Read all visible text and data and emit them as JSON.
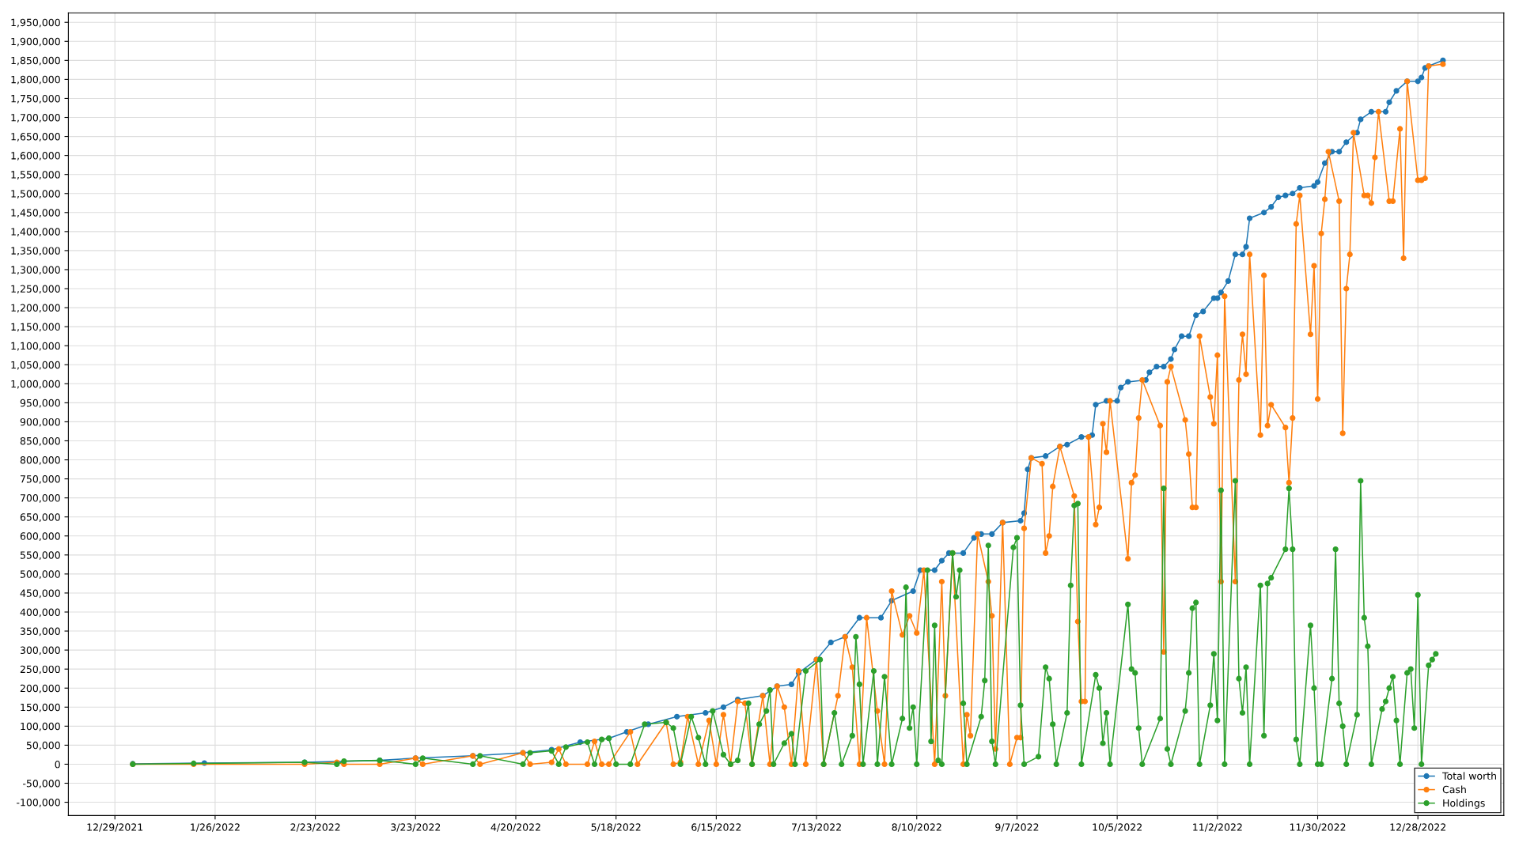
{
  "chart_data": {
    "type": "line",
    "marker": "circle",
    "line_style": "solid",
    "grid": true,
    "legend": "bottom right",
    "xlim": [
      "2021-12-16",
      "2023-01-21"
    ],
    "xticks": [
      {
        "value": "2021-12-29",
        "label": "12/29/2021"
      },
      {
        "value": "2022-01-26",
        "label": "1/26/2022"
      },
      {
        "value": "2022-02-23",
        "label": "2/23/2022"
      },
      {
        "value": "2022-03-23",
        "label": "3/23/2022"
      },
      {
        "value": "2022-04-20",
        "label": "4/20/2022"
      },
      {
        "value": "2022-05-18",
        "label": "5/18/2022"
      },
      {
        "value": "2022-06-15",
        "label": "6/15/2022"
      },
      {
        "value": "2022-07-13",
        "label": "7/13/2022"
      },
      {
        "value": "2022-08-10",
        "label": "8/10/2022"
      },
      {
        "value": "2022-09-07",
        "label": "9/7/2022"
      },
      {
        "value": "2022-10-05",
        "label": "10/5/2022"
      },
      {
        "value": "2022-11-02",
        "label": "11/2/2022"
      },
      {
        "value": "2022-11-30",
        "label": "11/30/2022"
      },
      {
        "value": "2022-12-28",
        "label": "12/28/2022"
      }
    ],
    "ylim": [
      -135000,
      1975000
    ],
    "yticks": [
      {
        "value": -100000,
        "label": "-100,000"
      },
      {
        "value": -50000,
        "label": "-50,000"
      },
      0,
      {
        "value": 50000,
        "label": "50,000"
      },
      {
        "value": 100000,
        "label": "100,000"
      },
      {
        "value": 150000,
        "label": "150,000"
      },
      {
        "value": 200000,
        "label": "200,000"
      },
      {
        "value": 250000,
        "label": "250,000"
      },
      {
        "value": 300000,
        "label": "300,000"
      },
      {
        "value": 350000,
        "label": "350,000"
      },
      {
        "value": 400000,
        "label": "400,000"
      },
      {
        "value": 450000,
        "label": "450,000"
      },
      {
        "value": 500000,
        "label": "500,000"
      },
      {
        "value": 550000,
        "label": "550,000"
      },
      {
        "value": 600000,
        "label": "600,000"
      },
      {
        "value": 650000,
        "label": "650,000"
      },
      {
        "value": 700000,
        "label": "700,000"
      },
      {
        "value": 750000,
        "label": "750,000"
      },
      {
        "value": 800000,
        "label": "800,000"
      },
      {
        "value": 850000,
        "label": "850,000"
      },
      {
        "value": 900000,
        "label": "900,000"
      },
      {
        "value": 950000,
        "label": "950,000"
      },
      {
        "value": 1000000,
        "label": "1,000,000"
      },
      {
        "value": 1050000,
        "label": "1,050,000"
      },
      {
        "value": 1100000,
        "label": "1,100,000"
      },
      {
        "value": 1150000,
        "label": "1,150,000"
      },
      {
        "value": 1200000,
        "label": "1,200,000"
      },
      {
        "value": 1250000,
        "label": "1,250,000"
      },
      {
        "value": 1300000,
        "label": "1,300,000"
      },
      {
        "value": 1350000,
        "label": "1,350,000"
      },
      {
        "value": 1400000,
        "label": "1,400,000"
      },
      {
        "value": 1450000,
        "label": "1,450,000"
      },
      {
        "value": 1500000,
        "label": "1,500,000"
      },
      {
        "value": 1550000,
        "label": "1,550,000"
      },
      {
        "value": 1600000,
        "label": "1,600,000"
      },
      {
        "value": 1650000,
        "label": "1,650,000"
      },
      {
        "value": 1700000,
        "label": "1,700,000"
      },
      {
        "value": 1750000,
        "label": "1,750,000"
      },
      {
        "value": 1800000,
        "label": "1,800,000"
      },
      {
        "value": 1850000,
        "label": "1,850,000"
      },
      {
        "value": 1900000,
        "label": "1,900,000"
      },
      {
        "value": 1950000,
        "label": "1,950,000"
      }
    ],
    "series": [
      {
        "name": "Total worth",
        "color": "#1f77b4",
        "x": [
          "2022-01-03",
          "2022-01-23",
          "2022-02-20",
          "2022-03-13",
          "2022-03-23",
          "2022-04-08",
          "2022-04-22",
          "2022-04-30",
          "2022-05-08",
          "2022-05-16",
          "2022-05-21",
          "2022-05-27",
          "2022-06-04",
          "2022-06-12",
          "2022-06-17",
          "2022-06-21",
          "2022-06-28",
          "2022-07-02",
          "2022-07-06",
          "2022-07-08",
          "2022-07-13",
          "2022-07-17",
          "2022-07-21",
          "2022-07-25",
          "2022-07-31",
          "2022-08-03",
          "2022-08-09",
          "2022-08-11",
          "2022-08-15",
          "2022-08-17",
          "2022-08-19",
          "2022-08-23",
          "2022-08-26",
          "2022-08-28",
          "2022-08-31",
          "2022-09-03",
          "2022-09-08",
          "2022-09-09",
          "2022-09-10",
          "2022-09-11",
          "2022-09-15",
          "2022-09-19",
          "2022-09-21",
          "2022-09-25",
          "2022-09-28",
          "2022-09-29",
          "2022-10-02",
          "2022-10-05",
          "2022-10-06",
          "2022-10-08",
          "2022-10-13",
          "2022-10-14",
          "2022-10-16",
          "2022-10-18",
          "2022-10-20",
          "2022-10-21",
          "2022-10-23",
          "2022-10-25",
          "2022-10-27",
          "2022-10-29",
          "2022-11-01",
          "2022-11-02",
          "2022-11-03",
          "2022-11-05",
          "2022-11-07",
          "2022-11-09",
          "2022-11-10",
          "2022-11-11",
          "2022-11-15",
          "2022-11-17",
          "2022-11-19",
          "2022-11-21",
          "2022-11-23",
          "2022-11-25",
          "2022-11-29",
          "2022-11-30",
          "2022-12-02",
          "2022-12-04",
          "2022-12-06",
          "2022-12-08",
          "2022-12-11",
          "2022-12-12",
          "2022-12-15",
          "2022-12-19",
          "2022-12-20",
          "2022-12-22",
          "2022-12-25",
          "2022-12-28",
          "2022-12-29",
          "2022-12-30",
          "2022-12-31",
          "2023-01-04"
        ],
        "values": [
          1000,
          3000,
          5000,
          10000,
          16000,
          22000,
          30000,
          38000,
          58000,
          68000,
          85000,
          105000,
          125000,
          135000,
          150000,
          170000,
          180000,
          205000,
          210000,
          240000,
          275000,
          320000,
          335000,
          385000,
          385000,
          430000,
          455000,
          510000,
          510000,
          535000,
          555000,
          555000,
          595000,
          605000,
          605000,
          635000,
          640000,
          660000,
          775000,
          805000,
          810000,
          835000,
          840000,
          860000,
          865000,
          945000,
          955000,
          955000,
          990000,
          1005000,
          1010000,
          1030000,
          1045000,
          1045000,
          1065000,
          1090000,
          1125000,
          1125000,
          1180000,
          1190000,
          1225000,
          1225000,
          1240000,
          1270000,
          1340000,
          1340000,
          1360000,
          1435000,
          1450000,
          1465000,
          1490000,
          1495000,
          1500000,
          1515000,
          1520000,
          1530000,
          1580000,
          1610000,
          1610000,
          1635000,
          1660000,
          1695000,
          1715000,
          1715000,
          1740000,
          1770000,
          1795000,
          1795000,
          1805000,
          1830000,
          1835000,
          1850000
        ]
      },
      {
        "name": "Cash",
        "color": "#ff7f0e",
        "x": [
          "2022-01-03",
          "2022-01-20",
          "2022-02-20",
          "2022-03-01",
          "2022-03-03",
          "2022-03-13",
          "2022-03-23",
          "2022-03-25",
          "2022-04-08",
          "2022-04-10",
          "2022-04-22",
          "2022-04-24",
          "2022-04-30",
          "2022-05-02",
          "2022-05-04",
          "2022-05-10",
          "2022-05-12",
          "2022-05-14",
          "2022-05-16",
          "2022-05-22",
          "2022-05-24",
          "2022-06-01",
          "2022-06-03",
          "2022-06-05",
          "2022-06-07",
          "2022-06-10",
          "2022-06-13",
          "2022-06-15",
          "2022-06-17",
          "2022-06-19",
          "2022-06-21",
          "2022-06-23",
          "2022-06-25",
          "2022-06-28",
          "2022-06-30",
          "2022-07-02",
          "2022-07-04",
          "2022-07-06",
          "2022-07-08",
          "2022-07-10",
          "2022-07-13",
          "2022-07-15",
          "2022-07-19",
          "2022-07-21",
          "2022-07-23",
          "2022-07-25",
          "2022-07-27",
          "2022-07-30",
          "2022-08-01",
          "2022-08-03",
          "2022-08-06",
          "2022-08-08",
          "2022-08-10",
          "2022-08-12",
          "2022-08-15",
          "2022-08-17",
          "2022-08-18",
          "2022-08-20",
          "2022-08-23",
          "2022-08-24",
          "2022-08-25",
          "2022-08-27",
          "2022-08-30",
          "2022-08-31",
          "2022-09-01",
          "2022-09-03",
          "2022-09-05",
          "2022-09-07",
          "2022-09-08",
          "2022-09-09",
          "2022-09-11",
          "2022-09-14",
          "2022-09-15",
          "2022-09-16",
          "2022-09-17",
          "2022-09-19",
          "2022-09-23",
          "2022-09-24",
          "2022-09-25",
          "2022-09-26",
          "2022-09-27",
          "2022-09-29",
          "2022-09-30",
          "2022-10-01",
          "2022-10-02",
          "2022-10-03",
          "2022-10-08",
          "2022-10-09",
          "2022-10-10",
          "2022-10-11",
          "2022-10-12",
          "2022-10-17",
          "2022-10-18",
          "2022-10-19",
          "2022-10-20",
          "2022-10-24",
          "2022-10-25",
          "2022-10-26",
          "2022-10-27",
          "2022-10-28",
          "2022-10-31",
          "2022-11-01",
          "2022-11-02",
          "2022-11-03",
          "2022-11-04",
          "2022-11-07",
          "2022-11-08",
          "2022-11-09",
          "2022-11-10",
          "2022-11-11",
          "2022-11-14",
          "2022-11-15",
          "2022-11-16",
          "2022-11-17",
          "2022-11-21",
          "2022-11-22",
          "2022-11-23",
          "2022-11-24",
          "2022-11-25",
          "2022-11-28",
          "2022-11-29",
          "2022-11-30",
          "2022-12-01",
          "2022-12-02",
          "2022-12-03",
          "2022-12-06",
          "2022-12-07",
          "2022-12-08",
          "2022-12-09",
          "2022-12-10",
          "2022-12-13",
          "2022-12-14",
          "2022-12-15",
          "2022-12-16",
          "2022-12-17",
          "2022-12-20",
          "2022-12-21",
          "2022-12-23",
          "2022-12-24",
          "2022-12-25",
          "2022-12-28",
          "2022-12-29",
          "2022-12-30",
          "2022-12-31",
          "2023-01-04"
        ],
        "values": [
          0,
          0,
          0,
          5000,
          0,
          0,
          16000,
          0,
          22000,
          0,
          30000,
          0,
          5000,
          40000,
          0,
          0,
          60000,
          0,
          0,
          85000,
          0,
          110000,
          0,
          5000,
          125000,
          0,
          115000,
          0,
          130000,
          0,
          165000,
          160000,
          0,
          180000,
          0,
          205000,
          150000,
          0,
          245000,
          0,
          275000,
          0,
          180000,
          335000,
          255000,
          0,
          385000,
          140000,
          0,
          455000,
          340000,
          390000,
          345000,
          510000,
          0,
          480000,
          180000,
          555000,
          0,
          130000,
          75000,
          605000,
          480000,
          390000,
          40000,
          635000,
          0,
          70000,
          70000,
          620000,
          805000,
          790000,
          555000,
          600000,
          730000,
          835000,
          705000,
          375000,
          165000,
          165000,
          860000,
          630000,
          675000,
          895000,
          820000,
          955000,
          540000,
          740000,
          760000,
          910000,
          1010000,
          890000,
          295000,
          1005000,
          1045000,
          905000,
          815000,
          675000,
          675000,
          1125000,
          965000,
          895000,
          1075000,
          480000,
          1230000,
          480000,
          1010000,
          1130000,
          1025000,
          1340000,
          865000,
          1285000,
          890000,
          945000,
          885000,
          740000,
          910000,
          1420000,
          1495000,
          1130000,
          1310000,
          960000,
          1395000,
          1485000,
          1610000,
          1480000,
          870000,
          1250000,
          1340000,
          1660000,
          1495000,
          1495000,
          1475000,
          1595000,
          1715000,
          1480000,
          1480000,
          1670000,
          1330000,
          1795000,
          1535000,
          1535000,
          1540000,
          1835000,
          1840000
        ]
      },
      {
        "name": "Holdings",
        "color": "#2ca02c",
        "x": [
          "2022-01-03",
          "2022-01-20",
          "2022-02-20",
          "2022-03-01",
          "2022-03-03",
          "2022-03-13",
          "2022-03-23",
          "2022-03-25",
          "2022-04-08",
          "2022-04-10",
          "2022-04-22",
          "2022-04-24",
          "2022-04-30",
          "2022-05-02",
          "2022-05-04",
          "2022-05-10",
          "2022-05-12",
          "2022-05-14",
          "2022-05-16",
          "2022-05-18",
          "2022-05-22",
          "2022-05-26",
          "2022-06-01",
          "2022-06-03",
          "2022-06-05",
          "2022-06-08",
          "2022-06-10",
          "2022-06-12",
          "2022-06-14",
          "2022-06-17",
          "2022-06-19",
          "2022-06-21",
          "2022-06-24",
          "2022-06-25",
          "2022-06-27",
          "2022-06-29",
          "2022-06-30",
          "2022-07-01",
          "2022-07-04",
          "2022-07-06",
          "2022-07-07",
          "2022-07-10",
          "2022-07-14",
          "2022-07-15",
          "2022-07-18",
          "2022-07-20",
          "2022-07-23",
          "2022-07-24",
          "2022-07-25",
          "2022-07-26",
          "2022-07-29",
          "2022-07-30",
          "2022-08-01",
          "2022-08-03",
          "2022-08-06",
          "2022-08-07",
          "2022-08-08",
          "2022-08-09",
          "2022-08-10",
          "2022-08-13",
          "2022-08-14",
          "2022-08-15",
          "2022-08-16",
          "2022-08-17",
          "2022-08-20",
          "2022-08-21",
          "2022-08-22",
          "2022-08-23",
          "2022-08-24",
          "2022-08-28",
          "2022-08-29",
          "2022-08-30",
          "2022-08-31",
          "2022-09-01",
          "2022-09-06",
          "2022-09-07",
          "2022-09-08",
          "2022-09-09",
          "2022-09-13",
          "2022-09-15",
          "2022-09-16",
          "2022-09-17",
          "2022-09-18",
          "2022-09-21",
          "2022-09-22",
          "2022-09-23",
          "2022-09-24",
          "2022-09-25",
          "2022-09-29",
          "2022-09-30",
          "2022-10-01",
          "2022-10-02",
          "2022-10-03",
          "2022-10-08",
          "2022-10-09",
          "2022-10-10",
          "2022-10-11",
          "2022-10-12",
          "2022-10-17",
          "2022-10-18",
          "2022-10-19",
          "2022-10-20",
          "2022-10-24",
          "2022-10-25",
          "2022-10-26",
          "2022-10-27",
          "2022-10-28",
          "2022-10-31",
          "2022-11-01",
          "2022-11-02",
          "2022-11-03",
          "2022-11-04",
          "2022-11-07",
          "2022-11-08",
          "2022-11-09",
          "2022-11-10",
          "2022-11-11",
          "2022-11-14",
          "2022-11-15",
          "2022-11-16",
          "2022-11-17",
          "2022-11-21",
          "2022-11-22",
          "2022-11-23",
          "2022-11-24",
          "2022-11-25",
          "2022-11-28",
          "2022-11-29",
          "2022-11-30",
          "2022-12-01",
          "2022-12-04",
          "2022-12-05",
          "2022-12-06",
          "2022-12-07",
          "2022-12-08",
          "2022-12-11",
          "2022-12-12",
          "2022-12-13",
          "2022-12-14",
          "2022-12-15",
          "2022-12-18",
          "2022-12-19",
          "2022-12-20",
          "2022-12-21",
          "2022-12-22",
          "2022-12-23",
          "2022-12-25",
          "2022-12-26",
          "2022-12-27",
          "2022-12-28",
          "2022-12-29",
          "2022-12-31",
          "2023-01-01",
          "2023-01-02"
        ],
        "values": [
          0,
          2000,
          5000,
          0,
          8000,
          10000,
          0,
          16000,
          0,
          22000,
          0,
          30000,
          35000,
          0,
          45000,
          58000,
          0,
          65000,
          68000,
          0,
          0,
          105000,
          110000,
          95000,
          0,
          125000,
          70000,
          0,
          140000,
          25000,
          0,
          10000,
          160000,
          0,
          105000,
          140000,
          195000,
          0,
          55000,
          80000,
          0,
          245000,
          275000,
          0,
          135000,
          0,
          75000,
          335000,
          210000,
          0,
          245000,
          0,
          230000,
          0,
          120000,
          465000,
          95000,
          150000,
          0,
          510000,
          60000,
          365000,
          10000,
          0,
          555000,
          440000,
          510000,
          160000,
          0,
          125000,
          220000,
          575000,
          60000,
          0,
          570000,
          595000,
          155000,
          0,
          20000,
          255000,
          225000,
          105000,
          0,
          135000,
          470000,
          680000,
          685000,
          0,
          235000,
          200000,
          55000,
          135000,
          0,
          420000,
          250000,
          240000,
          95000,
          0,
          120000,
          725000,
          40000,
          0,
          140000,
          240000,
          410000,
          425000,
          0,
          155000,
          290000,
          115000,
          720000,
          0,
          745000,
          225000,
          135000,
          255000,
          0,
          470000,
          75000,
          475000,
          490000,
          565000,
          725000,
          565000,
          65000,
          0,
          365000,
          200000,
          0,
          0,
          225000,
          565000,
          160000,
          100000,
          0,
          130000,
          745000,
          385000,
          310000,
          0,
          145000,
          165000,
          200000,
          230000,
          115000,
          0,
          240000,
          250000,
          95000,
          445000,
          0,
          260000,
          275000,
          290000
        ]
      }
    ]
  }
}
